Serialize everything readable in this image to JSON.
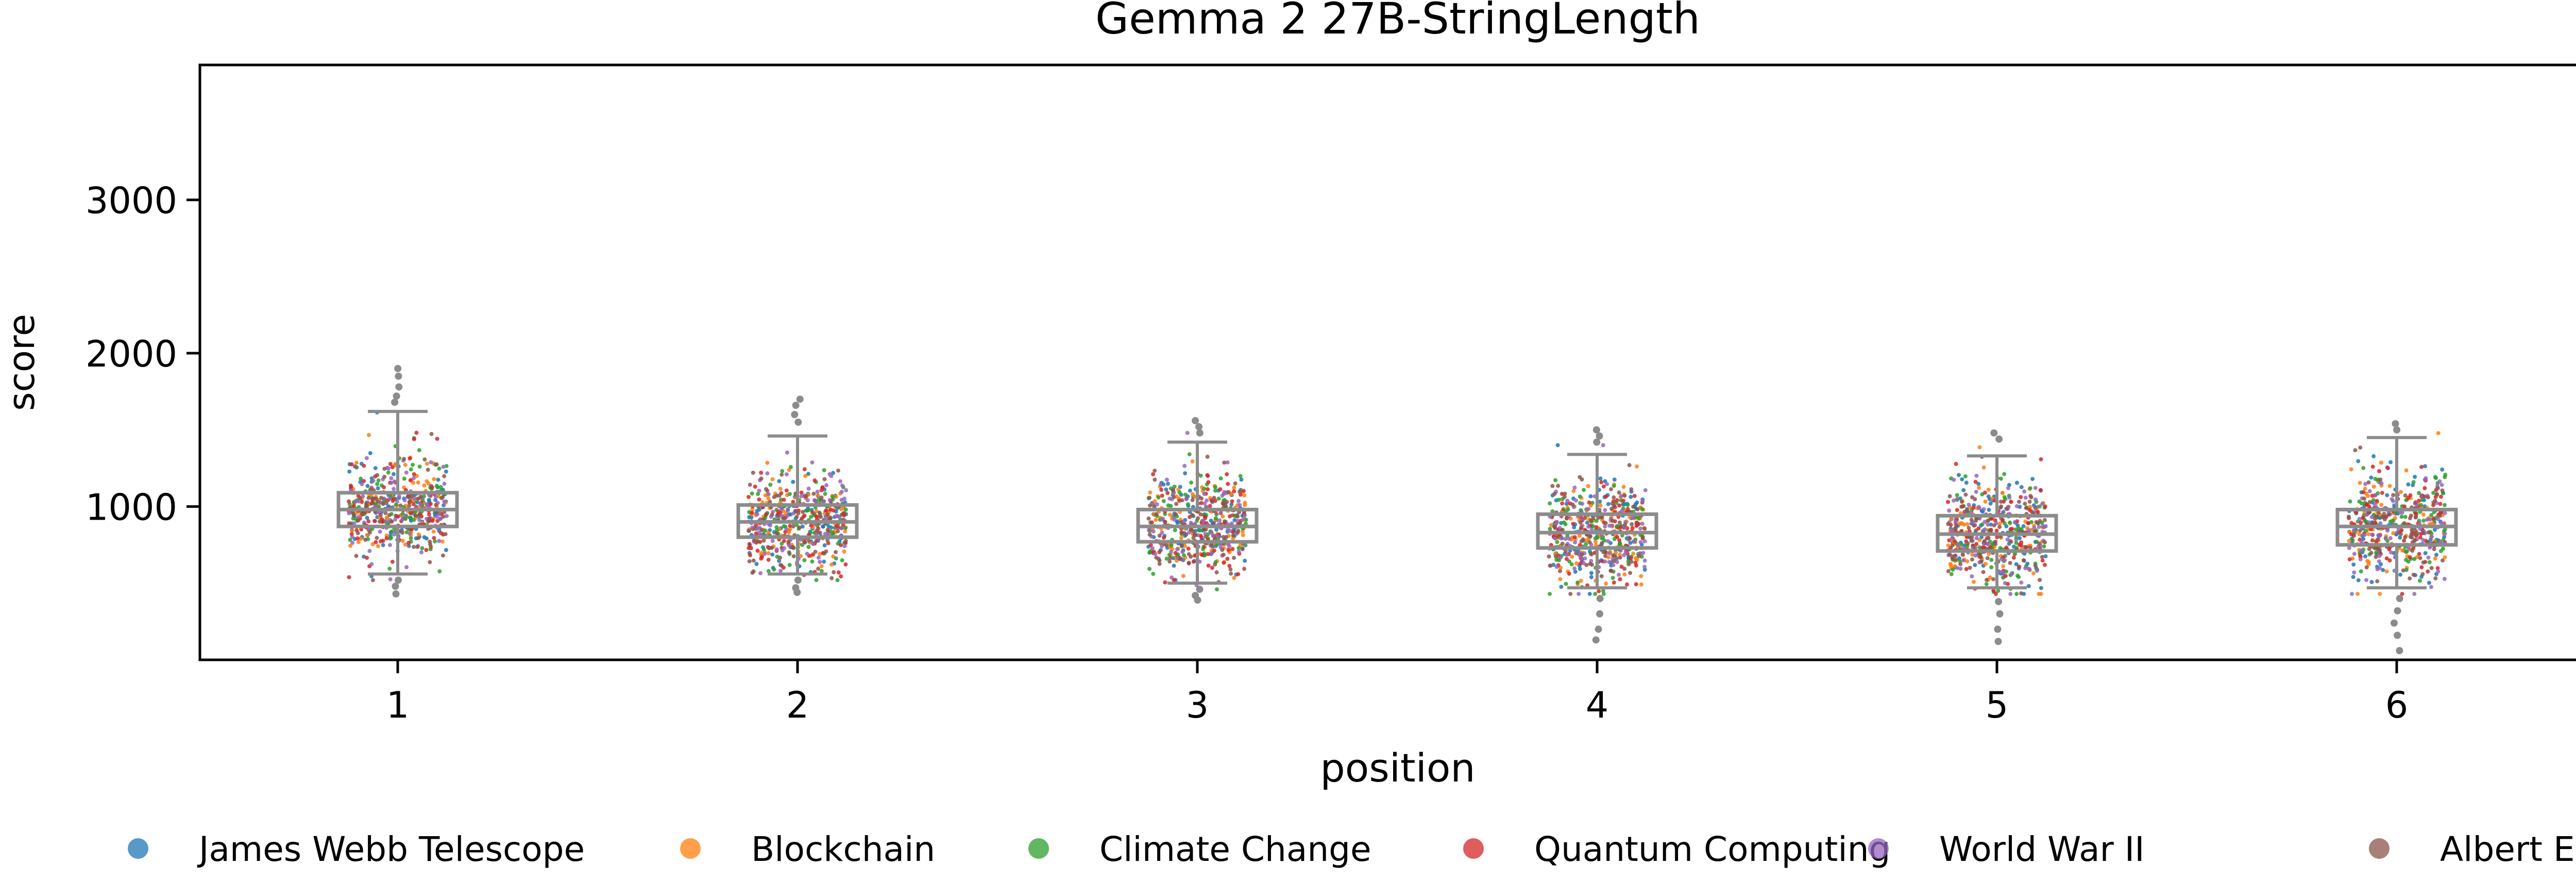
{
  "chart_data": {
    "type": "box-strip",
    "title": "Gemma 2 27B-StringLength",
    "xlabel": "position",
    "ylabel": "score",
    "categories": [
      "1",
      "2",
      "3",
      "4",
      "5",
      "6"
    ],
    "ylim": [
      0,
      3880
    ],
    "yticks": [
      1000,
      2000,
      3000
    ],
    "grid": false,
    "legend_position": "bottom",
    "series": [
      {
        "name": "James Webb Telescope",
        "color": "#1f77b4"
      },
      {
        "name": "Blockchain",
        "color": "#ff7f0e"
      },
      {
        "name": "Climate Change",
        "color": "#2ca02c"
      },
      {
        "name": "Quantum Computing",
        "color": "#d62728"
      },
      {
        "name": "World War II",
        "color": "#9467bd"
      },
      {
        "name": "Albert Einstein",
        "color": "#8c564b"
      }
    ],
    "boxes": [
      {
        "position": "1",
        "q1": 870,
        "median": 980,
        "q3": 1090,
        "whisker_low": 560,
        "whisker_high": 1620,
        "outliers": [
          1900,
          1850,
          1780,
          1720,
          1680,
          520,
          480,
          430
        ]
      },
      {
        "position": "2",
        "q1": 800,
        "median": 900,
        "q3": 1010,
        "whisker_low": 560,
        "whisker_high": 1460,
        "outliers": [
          1700,
          1660,
          1600,
          1550,
          520,
          470,
          440
        ]
      },
      {
        "position": "3",
        "q1": 770,
        "median": 870,
        "q3": 980,
        "whisker_low": 500,
        "whisker_high": 1420,
        "outliers": [
          1560,
          1520,
          1480,
          460,
          420,
          390
        ]
      },
      {
        "position": "4",
        "q1": 730,
        "median": 830,
        "q3": 950,
        "whisker_low": 470,
        "whisker_high": 1340,
        "outliers": [
          1500,
          1460,
          1420,
          400,
          300,
          200,
          130
        ]
      },
      {
        "position": "5",
        "q1": 710,
        "median": 820,
        "q3": 940,
        "whisker_low": 470,
        "whisker_high": 1330,
        "outliers": [
          1480,
          1440,
          380,
          300,
          200,
          120
        ]
      },
      {
        "position": "6",
        "q1": 750,
        "median": 870,
        "q3": 980,
        "whisker_low": 470,
        "whisker_high": 1450,
        "outliers": [
          1540,
          1500,
          400,
          320,
          240,
          160,
          60
        ]
      }
    ]
  }
}
